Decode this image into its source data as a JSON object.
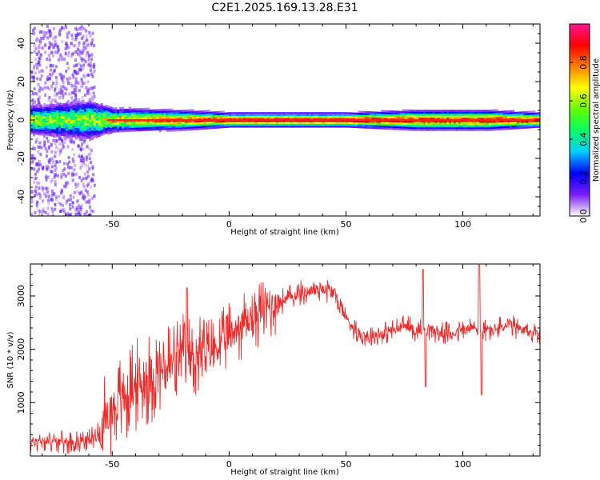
{
  "title": "C2E1.2025.169.13.28.E31",
  "chart_data": [
    {
      "type": "heatmap",
      "xlabel": "Height of straight line (km)",
      "ylabel": "Frequency (Hz)",
      "xlim": [
        -85,
        133
      ],
      "ylim": [
        -50,
        50
      ],
      "xticks": [
        -50,
        0,
        50,
        100
      ],
      "yticks": [
        -40,
        -20,
        0,
        20,
        40
      ],
      "colorbar": {
        "label": "Normalized spectral amplitude",
        "range": [
          0,
          1
        ],
        "ticks": [
          "0.0",
          "0.2",
          "0.4",
          "0.6",
          "0.8"
        ],
        "colormap": [
          "#ffffff",
          "#7a1cff",
          "#0000ff",
          "#00ccff",
          "#00ff66",
          "#66ff00",
          "#ffff00",
          "#ff8000",
          "#ff0000",
          "#ff1493"
        ]
      },
      "ridge": {
        "frequency": 0,
        "color": "#ff2020"
      },
      "band": [
        {
          "x": -85,
          "halfwidth": 6,
          "peak": 0.6
        },
        {
          "x": -60,
          "halfwidth": 8,
          "peak": 0.6
        },
        {
          "x": -50,
          "halfwidth": 5,
          "peak": 0.7
        },
        {
          "x": -20,
          "halfwidth": 4,
          "peak": 0.85
        },
        {
          "x": 0,
          "halfwidth": 3,
          "peak": 0.95
        },
        {
          "x": 50,
          "halfwidth": 3,
          "peak": 0.95
        },
        {
          "x": 80,
          "halfwidth": 4,
          "peak": 0.9
        },
        {
          "x": 110,
          "halfwidth": 4,
          "peak": 0.9
        },
        {
          "x": 133,
          "halfwidth": 3,
          "peak": 0.95
        }
      ],
      "noise_region": [
        -85,
        -58
      ]
    },
    {
      "type": "line",
      "xlabel": "Height of straight line (km)",
      "ylabel": "SNR (10 * v/v)",
      "xlim": [
        -85,
        133
      ],
      "ylim": [
        0,
        3600
      ],
      "xticks": [
        -50,
        0,
        50,
        100
      ],
      "yticks": [
        1000,
        2000,
        3000
      ],
      "color": "#ee2a2a",
      "series": [
        {
          "x": [
            -85,
            -80,
            -75,
            -70,
            -65,
            -60,
            -55,
            -50,
            -45,
            -40,
            -35,
            -30,
            -25,
            -20,
            -15,
            -10,
            -5,
            0,
            5,
            10,
            15,
            20,
            25,
            30,
            35,
            40,
            45,
            50,
            55,
            60,
            65,
            70,
            75,
            80,
            85,
            90,
            95,
            100,
            105,
            110,
            115,
            120,
            125,
            133
          ],
          "values": [
            250,
            300,
            280,
            250,
            280,
            300,
            450,
            900,
            1100,
            1300,
            1450,
            1600,
            1700,
            1800,
            1850,
            1950,
            2050,
            2250,
            2450,
            2600,
            2750,
            2850,
            2950,
            3050,
            3100,
            3150,
            3050,
            2600,
            2300,
            2250,
            2300,
            2350,
            2450,
            2350,
            2400,
            2300,
            2300,
            2350,
            2400,
            2350,
            2400,
            2450,
            2350,
            2300
          ]
        }
      ],
      "spikes": [
        {
          "x": -18,
          "value": 3150
        },
        {
          "x": 83,
          "value": 3500
        },
        {
          "x": 84,
          "value": 1300
        },
        {
          "x": 107,
          "value": 3600
        },
        {
          "x": 108,
          "value": 1150
        }
      ]
    }
  ]
}
